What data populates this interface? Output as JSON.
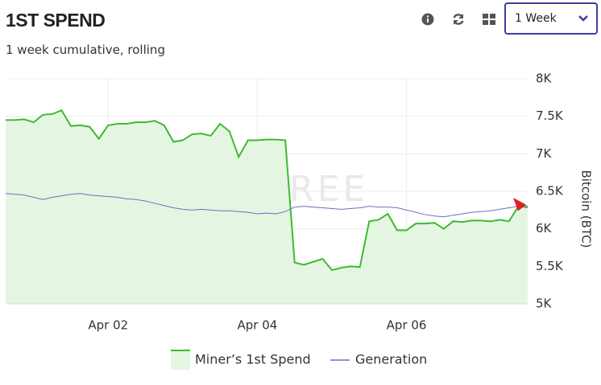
{
  "header": {
    "title": "1ST SPEND",
    "subtitle": "1 week cumulative, rolling",
    "range_select": "1 Week"
  },
  "chart_data": {
    "type": "line",
    "watermark": "BYTETREE",
    "ylabel": "Bitcoin (BTC)",
    "categories": [
      null,
      null,
      null,
      null,
      null,
      null,
      null,
      null,
      null,
      null,
      null,
      "Apr 02",
      null,
      null,
      null,
      null,
      null,
      null,
      null,
      null,
      null,
      null,
      null,
      null,
      null,
      null,
      null,
      "Apr 04",
      null,
      null,
      null,
      null,
      null,
      null,
      null,
      null,
      null,
      null,
      null,
      null,
      null,
      null,
      null,
      "Apr 06",
      null,
      null,
      null,
      null,
      null,
      null,
      null,
      null,
      null,
      null,
      null,
      null,
      null
    ],
    "series": [
      {
        "name": "Miner’s 1st Spend",
        "color": "#3dbb2e",
        "fill_color": "#e4f6e2",
        "values": [
          7450,
          7450,
          7460,
          7420,
          7520,
          7530,
          7580,
          7370,
          7380,
          7360,
          7200,
          7380,
          7400,
          7400,
          7420,
          7420,
          7440,
          7380,
          7160,
          7180,
          7260,
          7270,
          7240,
          7400,
          7300,
          6960,
          7180,
          7180,
          7190,
          7190,
          7180,
          5550,
          5520,
          5560,
          5600,
          5450,
          5480,
          5500,
          5490,
          6100,
          6120,
          6200,
          5980,
          5980,
          6070,
          6070,
          6080,
          6000,
          6100,
          6090,
          6110,
          6110,
          6100,
          6120,
          6100,
          6300,
          6300
        ]
      },
      {
        "name": "Generation",
        "color": "#6a6fc4",
        "values": [
          6470,
          6460,
          6450,
          6420,
          6390,
          6420,
          6440,
          6460,
          6470,
          6450,
          6440,
          6430,
          6420,
          6400,
          6390,
          6370,
          6340,
          6310,
          6280,
          6260,
          6250,
          6260,
          6250,
          6240,
          6240,
          6230,
          6220,
          6200,
          6210,
          6200,
          6230,
          6290,
          6300,
          6290,
          6280,
          6270,
          6260,
          6270,
          6280,
          6300,
          6290,
          6290,
          6280,
          6250,
          6220,
          6190,
          6170,
          6160,
          6180,
          6200,
          6220,
          6230,
          6240,
          6260,
          6280,
          6300,
          6280
        ]
      }
    ],
    "ylim": [
      5000,
      8000
    ],
    "yticks": [
      {
        "value": 5000,
        "label": "5K"
      },
      {
        "value": 5500,
        "label": "5.5K"
      },
      {
        "value": 6000,
        "label": "6K"
      },
      {
        "value": 6500,
        "label": "6.5K"
      },
      {
        "value": 7000,
        "label": "7K"
      },
      {
        "value": 7500,
        "label": "7.5K"
      },
      {
        "value": 8000,
        "label": "8K"
      }
    ],
    "grid": true
  }
}
